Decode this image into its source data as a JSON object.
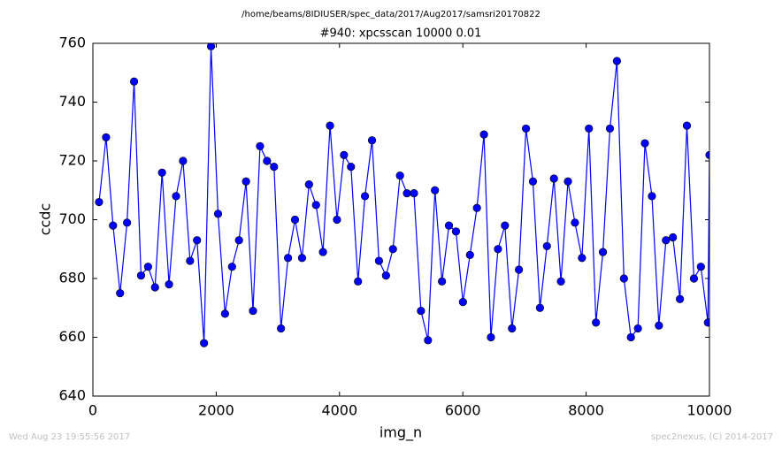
{
  "chart_data": {
    "type": "line",
    "suptitle": "/home/beams/8IDIUSER/spec_data/2017/Aug2017/samsri20170822",
    "title": "#940: xpcsscan 10000 0.01",
    "xlabel": "img_n",
    "ylabel": "ccdc",
    "color": "#0000ff",
    "x": [
      100,
      214,
      327,
      441,
      554,
      668,
      781,
      895,
      1008,
      1122,
      1235,
      1349,
      1462,
      1576,
      1689,
      1803,
      1916,
      2030,
      2143,
      2257,
      2370,
      2484,
      2597,
      2711,
      2824,
      2938,
      3051,
      3165,
      3278,
      3392,
      3505,
      3619,
      3732,
      3846,
      3959,
      4073,
      4186,
      4300,
      4413,
      4527,
      4640,
      4754,
      4867,
      4981,
      5094,
      5208,
      5321,
      5435,
      5548,
      5662,
      5775,
      5889,
      6002,
      6116,
      6229,
      6343,
      6456,
      6570,
      6683,
      6797,
      6910,
      7024,
      7137,
      7251,
      7364,
      7478,
      7591,
      7705,
      7818,
      7932,
      8045,
      8159,
      8272,
      8386,
      8499,
      8613,
      8726,
      8840,
      8953,
      9067,
      9180,
      9294,
      9407,
      9521,
      9634,
      9748,
      9861,
      9975,
      10000
    ],
    "values": [
      706,
      728,
      698,
      675,
      699,
      747,
      681,
      684,
      677,
      716,
      678,
      708,
      720,
      686,
      693,
      658,
      759,
      702,
      668,
      684,
      693,
      713,
      669,
      725,
      720,
      718,
      663,
      687,
      700,
      687,
      712,
      705,
      689,
      732,
      700,
      722,
      718,
      679,
      708,
      727,
      686,
      681,
      690,
      715,
      709,
      709,
      669,
      659,
      710,
      679,
      698,
      696,
      672,
      688,
      704,
      729,
      660,
      690,
      698,
      663,
      683,
      731,
      713,
      670,
      691,
      714,
      679,
      713,
      699,
      687,
      731,
      665,
      689,
      731,
      754,
      680,
      660,
      663,
      726,
      708,
      664,
      693,
      694,
      673,
      732,
      680,
      684,
      665,
      722
    ],
    "xlim": [
      0,
      10000
    ],
    "ylim": [
      640,
      760
    ],
    "xticks": [
      0,
      2000,
      4000,
      6000,
      8000,
      10000
    ],
    "yticks": [
      640,
      660,
      680,
      700,
      720,
      740,
      760
    ]
  },
  "footer": {
    "left": "Wed Aug 23 19:55:56 2017",
    "right": "spec2nexus, (C) 2014-2017"
  }
}
